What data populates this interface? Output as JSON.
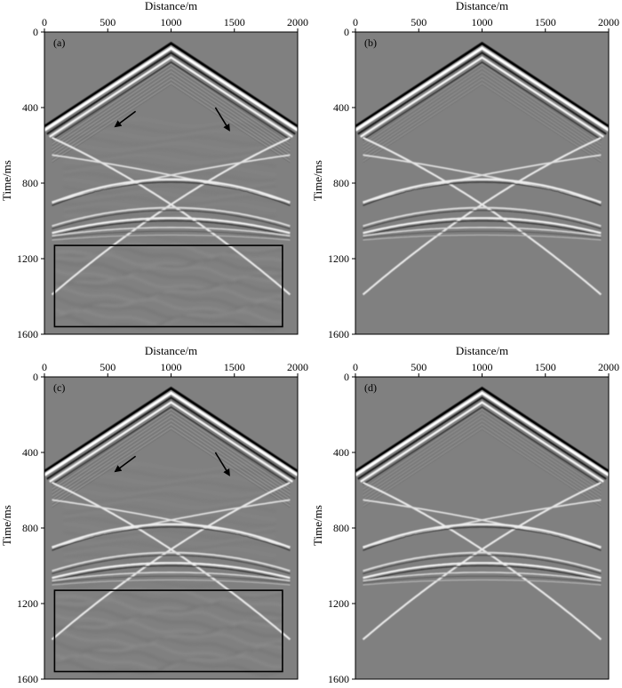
{
  "chart_data": [
    {
      "type": "heatmap",
      "panel_label": "(a)",
      "xlabel": "Distance/m",
      "ylabel": "Time/ms",
      "xlim": [
        0,
        2000
      ],
      "ylim": [
        1600,
        0
      ],
      "xticks": [
        "0",
        "500",
        "1000",
        "1500",
        "2000"
      ],
      "yticks": [
        "0",
        "400",
        "800",
        "1200",
        "1600"
      ],
      "noisy": true,
      "arrows": true,
      "highlight_box": {
        "x": [
          80,
          1880
        ],
        "y": [
          1130,
          1560
        ]
      }
    },
    {
      "type": "heatmap",
      "panel_label": "(b)",
      "xlabel": "Distance/m",
      "ylabel": "Time/ms",
      "xlim": [
        0,
        2000
      ],
      "ylim": [
        1600,
        0
      ],
      "xticks": [
        "0",
        "500",
        "1000",
        "1500",
        "2000"
      ],
      "yticks": [
        "0",
        "400",
        "800",
        "1200",
        "1600"
      ],
      "noisy": false,
      "arrows": false
    },
    {
      "type": "heatmap",
      "panel_label": "(c)",
      "xlabel": "Distance/m",
      "ylabel": "Time/ms",
      "xlim": [
        0,
        2000
      ],
      "ylim": [
        1600,
        0
      ],
      "xticks": [
        "0",
        "500",
        "1000",
        "1500",
        "2000"
      ],
      "yticks": [
        "0",
        "400",
        "800",
        "1200",
        "1600"
      ],
      "noisy": true,
      "arrows": true,
      "highlight_box": {
        "x": [
          80,
          1880
        ],
        "y": [
          1130,
          1560
        ]
      }
    },
    {
      "type": "heatmap",
      "panel_label": "(d)",
      "xlabel": "Distance/m",
      "ylabel": "Time/ms",
      "xlim": [
        0,
        2000
      ],
      "ylim": [
        1600,
        0
      ],
      "xticks": [
        "0",
        "500",
        "1000",
        "1500",
        "2000"
      ],
      "yticks": [
        "0",
        "400",
        "800",
        "1200",
        "1600"
      ],
      "noisy": false,
      "arrows": false
    }
  ],
  "colors": {
    "background": "#808080",
    "bright": "#ffffff",
    "dark": "#000000"
  }
}
